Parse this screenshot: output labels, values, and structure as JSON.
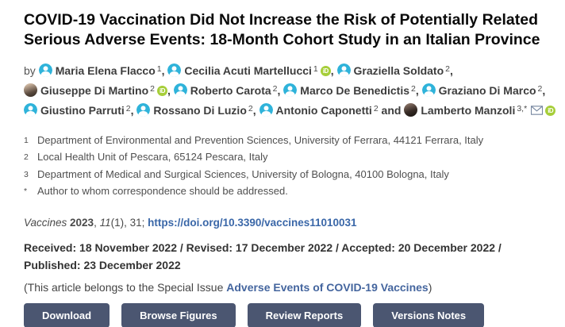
{
  "page_title": "COVID-19 Vaccination Did Not Increase the Risk of Potentially Related Serious Adverse Events: 18-Month Cohort Study in an Italian Province",
  "authors": {
    "lines": [
      [
        {
          "pre": "by ",
          "name": "Maria Elena Flacco",
          "sup": "1",
          "avatar": "generic",
          "sep": ", "
        },
        {
          "name": "Cecilia Acuti Martellucci",
          "sup": "1",
          "avatar": "generic",
          "orcid": true,
          "sep": ", "
        },
        {
          "name": "Graziella Soldato",
          "sup": "2",
          "avatar": "generic",
          "sep": ","
        }
      ],
      [
        {
          "name": "Giuseppe Di Martino",
          "sup": "2",
          "avatar": "photo1",
          "orcid": true,
          "sep": ", "
        },
        {
          "name": "Roberto Carota",
          "sup": "2",
          "avatar": "generic",
          "sep": ", "
        },
        {
          "name": "Marco De Benedictis",
          "sup": "2",
          "avatar": "generic",
          "sep": ", "
        },
        {
          "name": "Graziano Di Marco",
          "sup": "2",
          "avatar": "generic",
          "sep": ","
        }
      ],
      [
        {
          "name": "Giustino Parruti",
          "sup": "2",
          "avatar": "generic",
          "sep": ", "
        },
        {
          "name": "Rossano Di Luzio",
          "sup": "2",
          "avatar": "generic",
          "sep": ", "
        },
        {
          "name": "Antonio Caponetti",
          "sup": "2",
          "avatar": "generic",
          "sep": " and "
        },
        {
          "name": "Lamberto Manzoli",
          "sup": "3,*",
          "avatar": "photo2",
          "envelope": true,
          "orcid": true,
          "sep": ""
        }
      ]
    ]
  },
  "affiliations": [
    {
      "marker": "1",
      "text": "Department of Environmental and Prevention Sciences, University of Ferrara, 44121 Ferrara, Italy"
    },
    {
      "marker": "2",
      "text": "Local Health Unit of Pescara, 65124 Pescara, Italy"
    },
    {
      "marker": "3",
      "text": "Department of Medical and Surgical Sciences, University of Bologna, 40100 Bologna, Italy"
    },
    {
      "marker": "*",
      "text": "Author to whom correspondence should be addressed."
    }
  ],
  "citation": {
    "journal": "Vaccines ",
    "year": "2023",
    "sep": ", ",
    "volume": "11",
    "pages": "(1), 31; ",
    "doi_url": "https://doi.org/10.3390/vaccines11010031"
  },
  "history": "Received: 18 November 2022 / Revised: 17 December 2022 / Accepted: 20 December 2022 / Published: 23 December 2022",
  "special_issue": {
    "prefix": "(This article belongs to the Special Issue ",
    "link": "Adverse Events of COVID-19 Vaccines",
    "suffix": ")"
  },
  "buttons": [
    "Download",
    "Browse Figures",
    "Review Reports",
    "Versions Notes"
  ],
  "icons": {
    "person": "person-icon",
    "orcid": "orcid-icon",
    "orcid_text": "iD",
    "envelope": "envelope-icon"
  },
  "colors": {
    "person_icon": "#2fb3da",
    "orcid_green": "#a6ce39",
    "button_bg": "#4b5671",
    "link_blue": "#3a67a8",
    "special_issue_link": "#44659e"
  }
}
